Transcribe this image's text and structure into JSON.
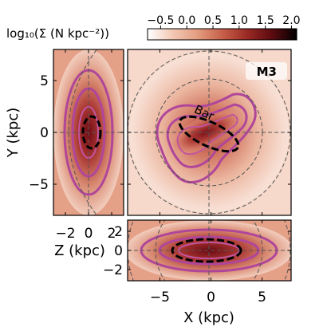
{
  "colorbar": {
    "label": "log₁₀(Σ (N kpc⁻²))",
    "ticks": [
      -0.5,
      0.0,
      0.5,
      1.0,
      1.5,
      2.0
    ],
    "tick_labels": [
      "−0.5",
      "0.0",
      "0.5",
      "1.0",
      "1.5",
      "2.0"
    ],
    "range": [
      -0.75,
      2.1
    ],
    "colormap": [
      "#ffffff",
      "#f3c9b5",
      "#e39d80",
      "#c7604a",
      "#9b2a24",
      "#5c0b10",
      "#000000"
    ]
  },
  "panels": {
    "face_on": {
      "model_label": "M3",
      "bar_label": "Bar"
    },
    "side_on": {},
    "edge_on": {}
  },
  "axes": {
    "x_label": "X (kpc)",
    "y_label": "Y (kpc)",
    "z_label": "Z (kpc)",
    "x_ticks": [
      -5,
      0,
      5
    ],
    "y_ticks": [
      5,
      0,
      -5
    ],
    "z_ticks_side": [
      -2,
      0,
      2
    ],
    "z_ticks_edge": [
      2,
      0,
      -2
    ],
    "x_tick_labels": [
      "−5",
      "0",
      "5"
    ],
    "y_tick_labels": [
      "5",
      "0",
      "−5"
    ],
    "zs_tick_labels": [
      "−2",
      "0",
      "2"
    ],
    "ze_tick_labels": [
      "2",
      "0",
      "−2"
    ],
    "xlim": [
      -8,
      8
    ],
    "ylim": [
      -8,
      8
    ],
    "zlim": [
      -3,
      3
    ]
  },
  "chart_data": {
    "type": "heatmap",
    "quantity": "log10 surface density",
    "bar": {
      "center": [
        0,
        0
      ],
      "semi_major_kpc": 3.3,
      "semi_minor_kpc": 1.2,
      "angle_deg": -25
    },
    "side_on_ellipse": {
      "center": [
        0,
        0
      ],
      "half_width_kpc": 0.8,
      "half_height_kpc": 1.7
    },
    "edge_on_ellipse": {
      "center": [
        0,
        0
      ],
      "half_width_kpc": 3.3,
      "half_height_kpc": 0.9
    },
    "reference_circles_kpc": [
      5
    ]
  },
  "colors": {
    "contour": "#b0469a",
    "dashed_guide": "#555555",
    "frame": "#000000"
  }
}
